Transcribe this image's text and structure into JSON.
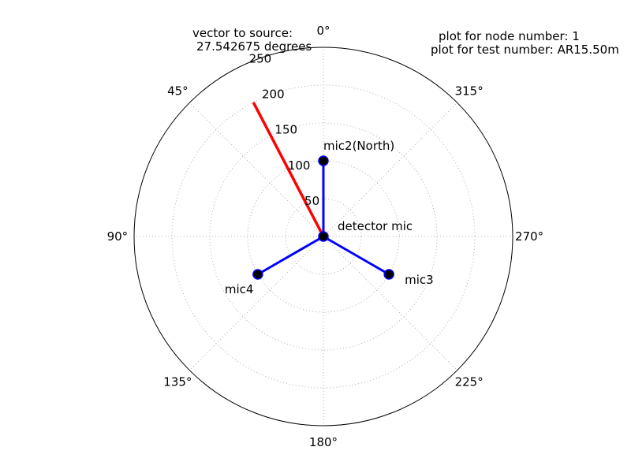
{
  "chart_data": {
    "type": "polar",
    "theta_zero": "top",
    "theta_direction": "counterclockwise",
    "rlim": [
      0,
      250
    ],
    "rticks": [
      50,
      100,
      150,
      200,
      250
    ],
    "rtick_labels": [
      "50",
      "100",
      "150",
      "200",
      "250"
    ],
    "theta_ticks": [
      0,
      45,
      90,
      135,
      180,
      225,
      270,
      315
    ],
    "theta_tick_labels": [
      "0°",
      "45°",
      "90°",
      "135°",
      "180°",
      "225°",
      "270°",
      "315°"
    ],
    "grid": true,
    "annotations": {
      "vector_label_line1": "vector to source:",
      "vector_label_line2": "27.542675 degrees",
      "node_label": "plot for node number: 1",
      "test_label": "plot for test number: AR15.50m"
    },
    "series": [
      {
        "role": "mic-array",
        "color": "#0000ff",
        "segments": [
          {
            "from": {
              "theta": 0,
              "r": 0
            },
            "to": {
              "theta": 0,
              "r": 100
            }
          },
          {
            "from": {
              "theta": 0,
              "r": 0
            },
            "to": {
              "theta": 120,
              "r": 100
            }
          },
          {
            "from": {
              "theta": 0,
              "r": 0
            },
            "to": {
              "theta": 240,
              "r": 100
            }
          }
        ],
        "points": [
          {
            "theta": 0,
            "r": 0,
            "label": "detector mic"
          },
          {
            "theta": 0,
            "r": 100,
            "label": "mic2(North)"
          },
          {
            "theta": 240,
            "r": 100,
            "label": "mic3"
          },
          {
            "theta": 120,
            "r": 100,
            "label": "mic4"
          }
        ]
      },
      {
        "role": "source-vector",
        "color": "#ff0000",
        "theta": 27.542675,
        "r": 200
      }
    ]
  }
}
